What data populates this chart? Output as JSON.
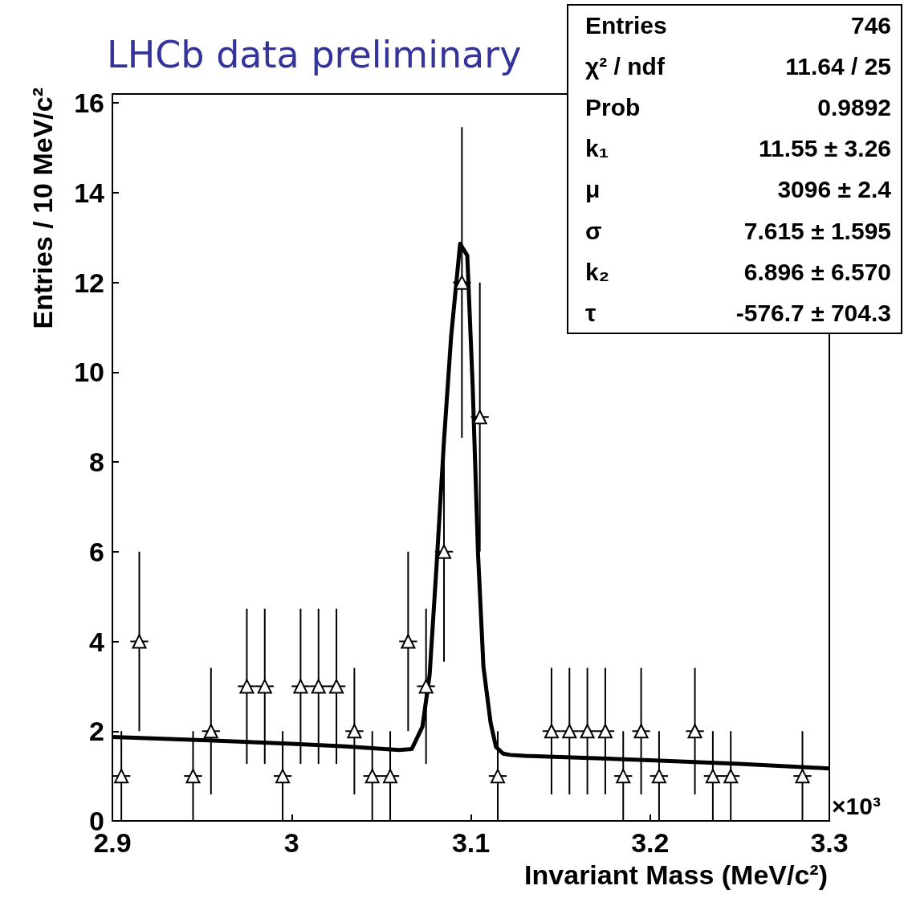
{
  "chart_data": {
    "type": "scatter",
    "title": "LHCb data preliminary",
    "xlabel": "Invariant Mass (MeV/c²)",
    "ylabel": "Entries / 10 MeV/c²",
    "annotations": [
      "Entries",
      "746",
      "χ² / ndf",
      "11.64 / 25",
      "Prob",
      "0.9892",
      "k₁",
      "11.55 ± 3.26",
      "μ",
      "3096 ± 2.4",
      "σ",
      "7.615 ± 1.595",
      "k₂",
      "6.896 ± 6.570",
      "τ",
      "-576.7 ± 704.3",
      "×10³"
    ],
    "xlim": [
      2.9,
      3.3
    ],
    "xticks": [
      2.9,
      3,
      3.1,
      3.2,
      3.3
    ],
    "ylim": [
      0,
      16.2
    ],
    "yticks": [
      0,
      2,
      4,
      6,
      8,
      10,
      12,
      14,
      16
    ],
    "grid": false,
    "series": [
      {
        "color": "#000000",
        "marker": "triangle",
        "x": [
          2.905,
          2.915,
          2.945,
          2.955,
          2.975,
          2.985,
          2.995,
          3.005,
          3.015,
          3.025,
          3.035,
          3.045,
          3.055,
          3.065,
          3.075,
          3.085,
          3.095,
          3.105,
          3.115,
          3.145,
          3.155,
          3.165,
          3.175,
          3.185,
          3.195,
          3.205,
          3.225,
          3.235,
          3.245,
          3.285
        ],
        "values": [
          1,
          4,
          1,
          2,
          3,
          3,
          1,
          3,
          3,
          3,
          2,
          1,
          1,
          4,
          3,
          6,
          12,
          9,
          1,
          2,
          2,
          2,
          2,
          1,
          2,
          1,
          2,
          1,
          1,
          1
        ],
        "errors": [
          1,
          2,
          1,
          1.41,
          1.73,
          1.73,
          1,
          1.73,
          1.73,
          1.73,
          1.41,
          1,
          1,
          2,
          1.73,
          2.45,
          3.46,
          3,
          1,
          1.41,
          1.41,
          1.41,
          1.41,
          1,
          1.41,
          1,
          1.41,
          1,
          1,
          1
        ],
        "xerrors": [
          0.005,
          0.005,
          0.005,
          0.005,
          0.005,
          0.005,
          0.005,
          0.005,
          0.005,
          0.005,
          0.005,
          0.005,
          0.005,
          0.005,
          0.005,
          0.005,
          0.005,
          0.005,
          0.005,
          0.005,
          0.005,
          0.005,
          0.005,
          0.005,
          0.005,
          0.005,
          0.005,
          0.005,
          0.005,
          0.005
        ]
      },
      {
        "type": "line",
        "color": "#000000",
        "marker": "none",
        "line_style": "solid",
        "x": [
          2.9,
          2.95,
          3.0,
          3.03,
          3.06,
          3.067,
          3.073,
          3.077,
          3.081,
          3.085,
          3.089,
          3.094,
          3.098,
          3.101,
          3.104,
          3.107,
          3.111,
          3.114,
          3.118,
          3.122,
          3.13,
          3.16,
          3.2,
          3.25,
          3.3
        ],
        "values": [
          1.87,
          1.8,
          1.72,
          1.66,
          1.58,
          1.6,
          2.1,
          3.26,
          5.78,
          8.47,
          10.8,
          12.86,
          12.6,
          9.7,
          5.96,
          3.44,
          2.19,
          1.65,
          1.5,
          1.47,
          1.45,
          1.41,
          1.35,
          1.27,
          1.17
        ]
      }
    ]
  }
}
